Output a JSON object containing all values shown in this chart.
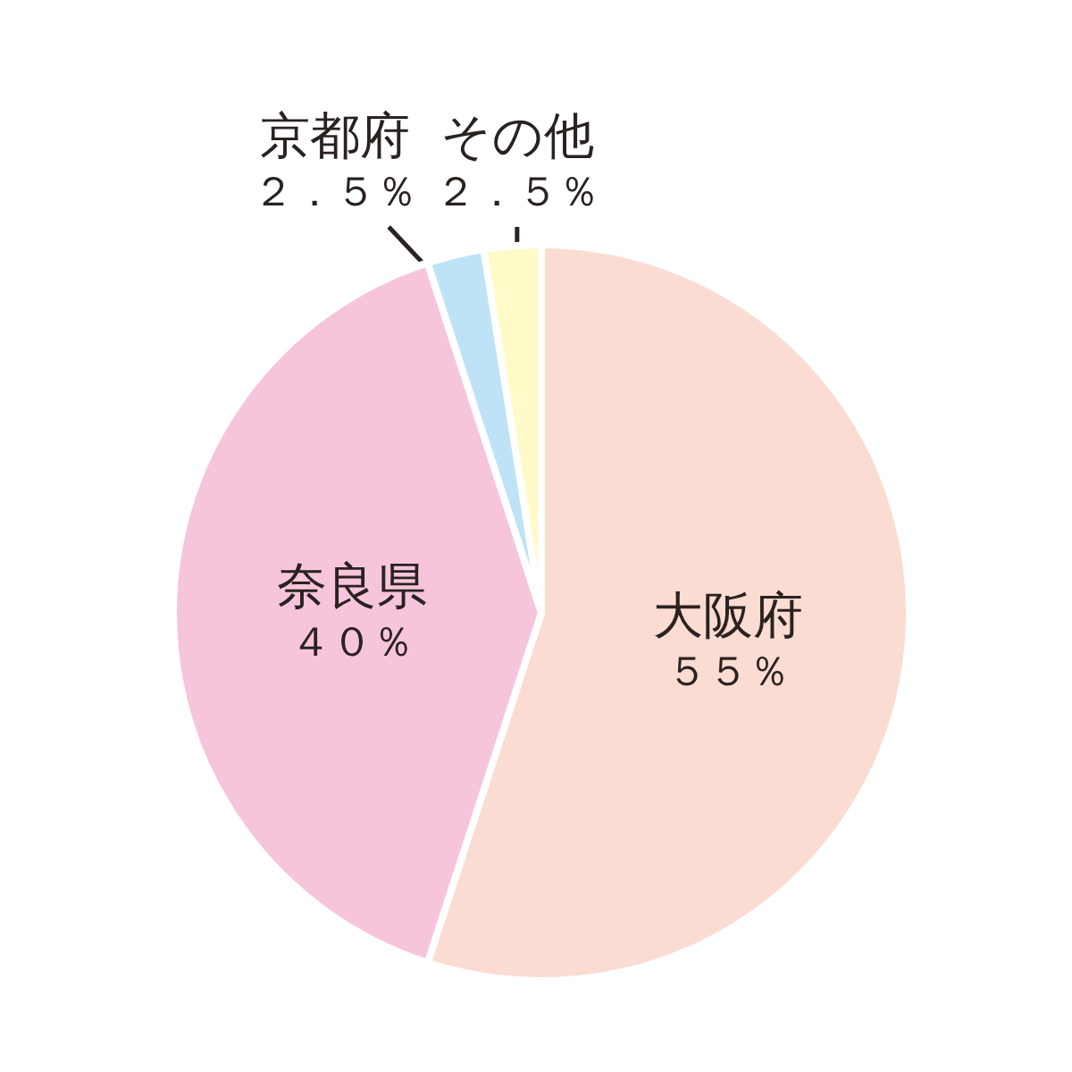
{
  "chart_data": {
    "type": "pie",
    "categories": [
      "大阪府",
      "奈良県",
      "京都府",
      "その他"
    ],
    "values": [
      55,
      40,
      2.5,
      2.5
    ],
    "colors": [
      "#fadcd3",
      "#f6c5dc",
      "#bee3f6",
      "#fffac7"
    ],
    "value_labels": [
      "５５％",
      "４０％",
      "２．５％",
      "２．５％"
    ]
  }
}
